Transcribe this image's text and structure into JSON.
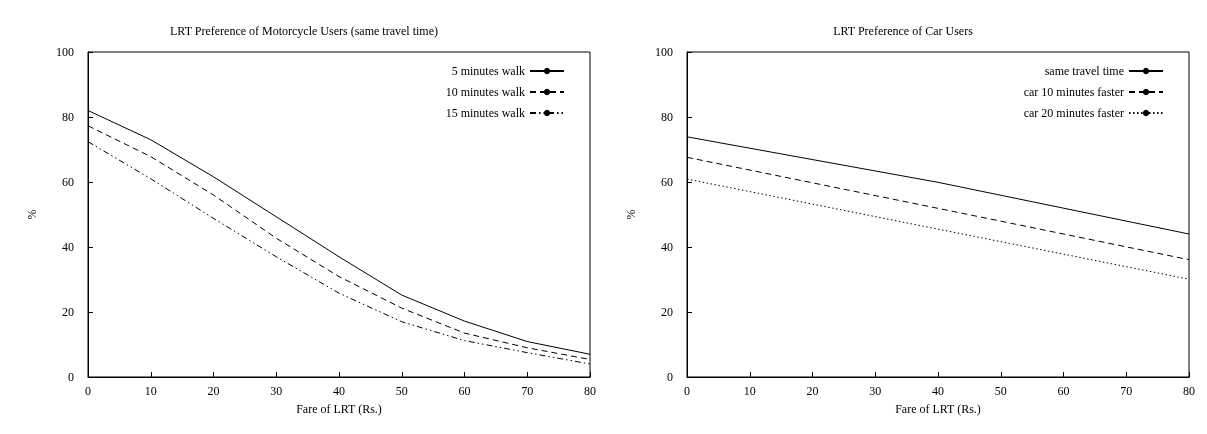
{
  "chart_data": [
    {
      "type": "line",
      "title": "LRT Preference of Motorcycle Users (same travel time)",
      "xlabel": "Fare of LRT (Rs.)",
      "ylabel": "%",
      "x": [
        0,
        10,
        20,
        30,
        40,
        50,
        60,
        70,
        80
      ],
      "series": [
        {
          "name": "5 minutes walk",
          "color": "#000000",
          "line_style": "solid",
          "values": [
            82,
            73,
            61.6,
            49.3,
            37,
            25.2,
            17.2,
            10.9,
            7
          ]
        },
        {
          "name": "10 minutes walk",
          "color": "#000000",
          "line_style": "dashed",
          "values": [
            77.3,
            67.8,
            56,
            42.7,
            30.9,
            21.2,
            13.5,
            9,
            5.4
          ]
        },
        {
          "name": "15 minutes walk",
          "color": "#000000",
          "line_style": "dashdot",
          "values": [
            72.4,
            61,
            48.8,
            37,
            25.8,
            17,
            11.2,
            7.5,
            4
          ]
        }
      ],
      "xlim": [
        0,
        80
      ],
      "xticks": [
        0,
        10,
        20,
        30,
        40,
        50,
        60,
        70,
        80
      ],
      "ylim": [
        0,
        100
      ],
      "yticks": [
        0,
        20,
        40,
        60,
        80,
        100
      ],
      "grid": false,
      "legend": "top right"
    },
    {
      "type": "line",
      "title": "LRT Preference of Car Users",
      "xlabel": "Fare of LRT (Rs.)",
      "ylabel": "%",
      "x": [
        0,
        40,
        80
      ],
      "series": [
        {
          "name": "same travel time",
          "color": "#000000",
          "line_style": "solid",
          "values": [
            73.9,
            59.9,
            44
          ]
        },
        {
          "name": "car 10 minutes faster",
          "color": "#000000",
          "line_style": "dashed",
          "values": [
            67.6,
            51.9,
            36.1
          ]
        },
        {
          "name": "car 20 minutes faster",
          "color": "#000000",
          "line_style": "dotted",
          "values": [
            60.9,
            45.5,
            30.1
          ]
        }
      ],
      "xlim": [
        0,
        80
      ],
      "xticks": [
        0,
        10,
        20,
        30,
        40,
        50,
        60,
        70,
        80
      ],
      "ylim": [
        0,
        100
      ],
      "yticks": [
        0,
        20,
        40,
        60,
        80,
        100
      ],
      "grid": false,
      "legend": "top right"
    }
  ]
}
